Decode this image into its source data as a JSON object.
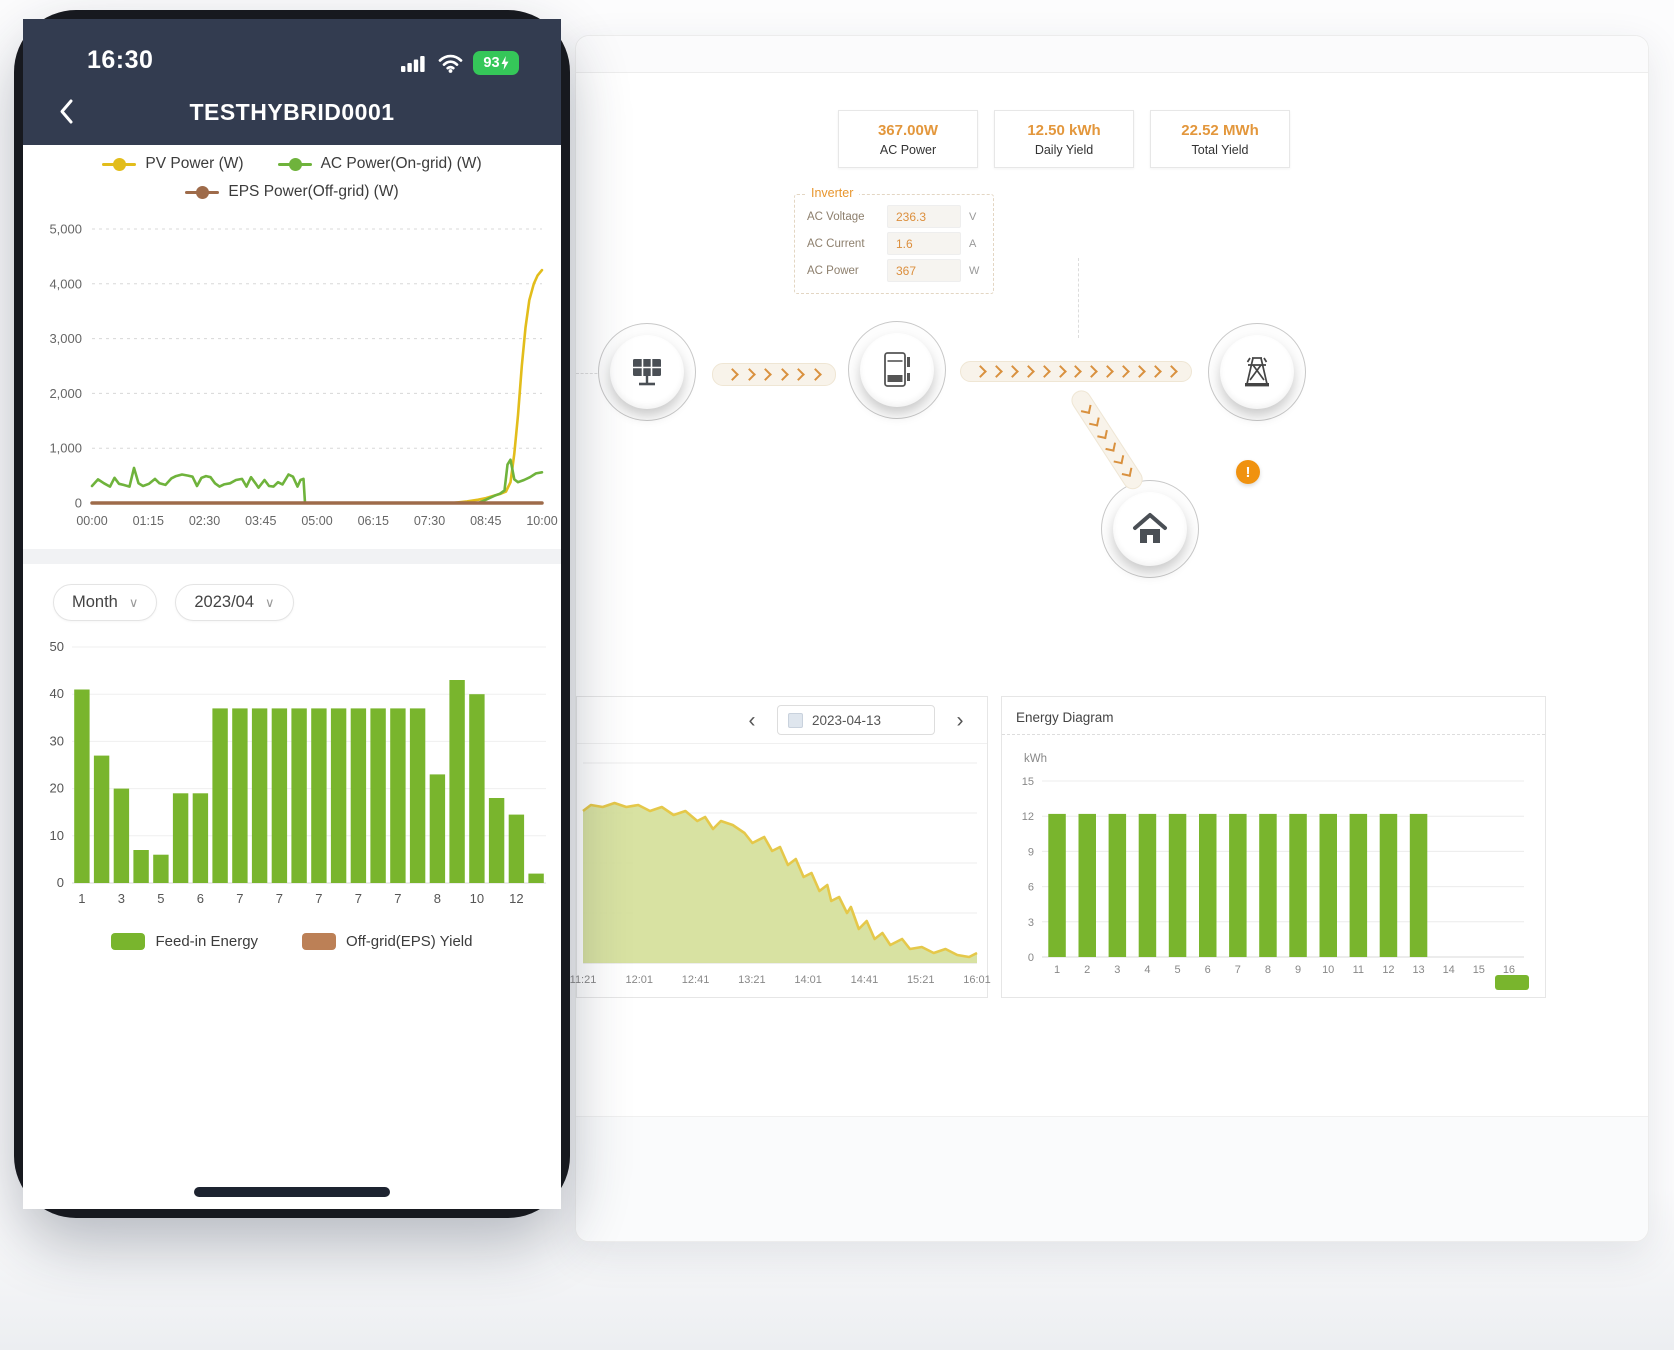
{
  "phone": {
    "status": {
      "time": "16:30",
      "battery_percent": "93"
    },
    "header": {
      "title": "TESTHYBRID0001"
    },
    "controls": {
      "period": "Month",
      "date": "2023/04",
      "chevron": "∨"
    }
  },
  "dashboard": {
    "stats": [
      {
        "value": "367.00W",
        "label": "AC Power"
      },
      {
        "value": "12.50 kWh",
        "label": "Daily Yield"
      },
      {
        "value": "22.52 MWh",
        "label": "Total Yield"
      }
    ],
    "inverter": {
      "title": "Inverter",
      "rows": [
        {
          "label": "AC Voltage",
          "value": "236.3",
          "unit": "V"
        },
        {
          "label": "AC Current",
          "value": "1.6",
          "unit": "A"
        },
        {
          "label": "AC Power",
          "value": "367",
          "unit": "W"
        }
      ]
    },
    "flow": {
      "nodes": [
        "solar-panel",
        "inverter",
        "power-grid",
        "home"
      ],
      "alert_glyph": "!"
    },
    "day_panel": {
      "date": "2023-04-13",
      "prev": "‹",
      "next": "›"
    },
    "energy_panel": {
      "title": "Energy Diagram",
      "unit_label": "kWh"
    }
  },
  "icons": {
    "signal": "cellular-signal",
    "wifi": "wifi",
    "battery": "battery-charging-93",
    "back": "chevron-left",
    "dropdown": "chevron-down",
    "calendar": "calendar",
    "prev": "chevron-left",
    "next": "chevron-right",
    "alert": "exclamation",
    "pv": "solar-panel",
    "inverter": "inverter-box",
    "grid": "power-tower",
    "home": "house"
  },
  "chart_data": [
    {
      "id": "power_line",
      "type": "line",
      "ylim": [
        0,
        5000
      ],
      "x_max_minutes": 600,
      "y_ticks": [
        "0",
        "1,000",
        "2,000",
        "3,000",
        "4,000",
        "5,000"
      ],
      "x_ticks": [
        "00:00",
        "01:15",
        "02:30",
        "03:45",
        "05:00",
        "06:15",
        "07:30",
        "08:45",
        "10:00"
      ],
      "grid": "dashed",
      "legend": [
        {
          "label": "PV Power (W)",
          "color": "#e2bd1b"
        },
        {
          "label": "AC Power(On-grid) (W)",
          "color": "#6fb33c"
        },
        {
          "label": "EPS Power(Off-grid) (W)",
          "color": "#9e6b4a"
        }
      ],
      "series": [
        {
          "name": "PV Power (W)",
          "color": "#e2bd1b",
          "width": 2.6,
          "points": [
            [
              0,
              0
            ],
            [
              480,
              0
            ],
            [
              500,
              30
            ],
            [
              515,
              60
            ],
            [
              525,
              90
            ],
            [
              535,
              130
            ],
            [
              545,
              170
            ],
            [
              552,
              210
            ],
            [
              558,
              380
            ],
            [
              563,
              900
            ],
            [
              568,
              1600
            ],
            [
              573,
              2500
            ],
            [
              578,
              3200
            ],
            [
              583,
              3700
            ],
            [
              589,
              4000
            ],
            [
              594,
              4150
            ],
            [
              600,
              4250
            ]
          ]
        },
        {
          "name": "AC Power(On-grid) (W)",
          "color": "#6fb33c",
          "width": 2.6,
          "points": [
            [
              0,
              310
            ],
            [
              8,
              430
            ],
            [
              16,
              360
            ],
            [
              24,
              300
            ],
            [
              30,
              460
            ],
            [
              36,
              350
            ],
            [
              42,
              330
            ],
            [
              50,
              300
            ],
            [
              56,
              640
            ],
            [
              62,
              360
            ],
            [
              68,
              310
            ],
            [
              76,
              350
            ],
            [
              84,
              440
            ],
            [
              90,
              360
            ],
            [
              98,
              330
            ],
            [
              106,
              450
            ],
            [
              112,
              490
            ],
            [
              120,
              520
            ],
            [
              128,
              500
            ],
            [
              134,
              480
            ],
            [
              140,
              310
            ],
            [
              146,
              460
            ],
            [
              152,
              490
            ],
            [
              158,
              470
            ],
            [
              164,
              360
            ],
            [
              170,
              300
            ],
            [
              176,
              340
            ],
            [
              184,
              360
            ],
            [
              192,
              420
            ],
            [
              200,
              440
            ],
            [
              206,
              300
            ],
            [
              212,
              470
            ],
            [
              218,
              360
            ],
            [
              222,
              280
            ],
            [
              230,
              420
            ],
            [
              236,
              310
            ],
            [
              242,
              300
            ],
            [
              248,
              380
            ],
            [
              254,
              340
            ],
            [
              262,
              520
            ],
            [
              268,
              480
            ],
            [
              274,
              300
            ],
            [
              278,
              420
            ],
            [
              282,
              440
            ],
            [
              284,
              0
            ],
            [
              515,
              0
            ],
            [
              522,
              40
            ],
            [
              530,
              90
            ],
            [
              538,
              140
            ],
            [
              544,
              170
            ],
            [
              550,
              230
            ],
            [
              554,
              700
            ],
            [
              558,
              790
            ],
            [
              563,
              430
            ],
            [
              568,
              380
            ],
            [
              576,
              420
            ],
            [
              584,
              470
            ],
            [
              592,
              540
            ],
            [
              600,
              560
            ]
          ]
        },
        {
          "name": "EPS Power(Off-grid) (W)",
          "color": "#9e6b4a",
          "width": 3.5,
          "points": [
            [
              0,
              0
            ],
            [
              600,
              0
            ]
          ]
        }
      ]
    },
    {
      "id": "month_bar",
      "type": "bar",
      "bar_color": "#79b52d",
      "ylim": [
        0,
        50
      ],
      "y_ticks": [
        0,
        10,
        20,
        30,
        40,
        50
      ],
      "values": [
        41,
        27,
        20,
        7,
        6,
        19,
        19,
        37,
        37,
        37,
        37,
        37,
        37,
        37,
        37,
        37,
        37,
        37,
        23,
        43,
        40,
        18,
        14.5,
        2
      ],
      "x_labels": [
        "1",
        "3",
        "5",
        "6",
        "7",
        "7",
        "7",
        "7",
        "7",
        "8",
        "10",
        "12"
      ],
      "label_every": 2,
      "legend": [
        {
          "label": "Feed-in Energy",
          "color": "#79b52d"
        },
        {
          "label": "Off-grid(EPS) Yield",
          "color": "#bc8056"
        }
      ]
    },
    {
      "id": "day_area",
      "type": "area",
      "stroke": "#e5c84a",
      "fill": "#d5e09a",
      "x_ticks": [
        "11:21",
        "12:01",
        "12:41",
        "13:21",
        "14:01",
        "14:41",
        "15:21",
        "16:01"
      ],
      "points_pct": [
        [
          0,
          76
        ],
        [
          2,
          79
        ],
        [
          5,
          78
        ],
        [
          8,
          80
        ],
        [
          11,
          78
        ],
        [
          14,
          79
        ],
        [
          17,
          76
        ],
        [
          20,
          78
        ],
        [
          23,
          74
        ],
        [
          26,
          76
        ],
        [
          29,
          71
        ],
        [
          31,
          73
        ],
        [
          33,
          67
        ],
        [
          35,
          71
        ],
        [
          38,
          69
        ],
        [
          41,
          65
        ],
        [
          43,
          60
        ],
        [
          46,
          63
        ],
        [
          48,
          56
        ],
        [
          50,
          58
        ],
        [
          52,
          49
        ],
        [
          54,
          52
        ],
        [
          56,
          43
        ],
        [
          58,
          45
        ],
        [
          60,
          36
        ],
        [
          62,
          39
        ],
        [
          63,
          31
        ],
        [
          65,
          33
        ],
        [
          67,
          25
        ],
        [
          68,
          28
        ],
        [
          70,
          17
        ],
        [
          72,
          21
        ],
        [
          74,
          12
        ],
        [
          76,
          15
        ],
        [
          78,
          9
        ],
        [
          81,
          12
        ],
        [
          83,
          7
        ],
        [
          86,
          8
        ],
        [
          89,
          5
        ],
        [
          92,
          7
        ],
        [
          95,
          4
        ],
        [
          98,
          3
        ],
        [
          100,
          5
        ]
      ]
    },
    {
      "id": "energy_bar",
      "type": "bar",
      "bar_color": "#79b52d",
      "ylim": [
        0,
        15
      ],
      "y_ticks": [
        0,
        3,
        6,
        9,
        12,
        15
      ],
      "values": [
        12.2,
        12.2,
        12.2,
        12.2,
        12.2,
        12.2,
        12.2,
        12.2,
        12.2,
        12.2,
        12.2,
        12.2,
        12.2
      ],
      "slots": 16,
      "x_labels": [
        "1",
        "2",
        "3",
        "4",
        "5",
        "6",
        "7",
        "8",
        "9",
        "10",
        "11",
        "12",
        "13",
        "14",
        "15",
        "16"
      ],
      "label_every": 1
    }
  ]
}
